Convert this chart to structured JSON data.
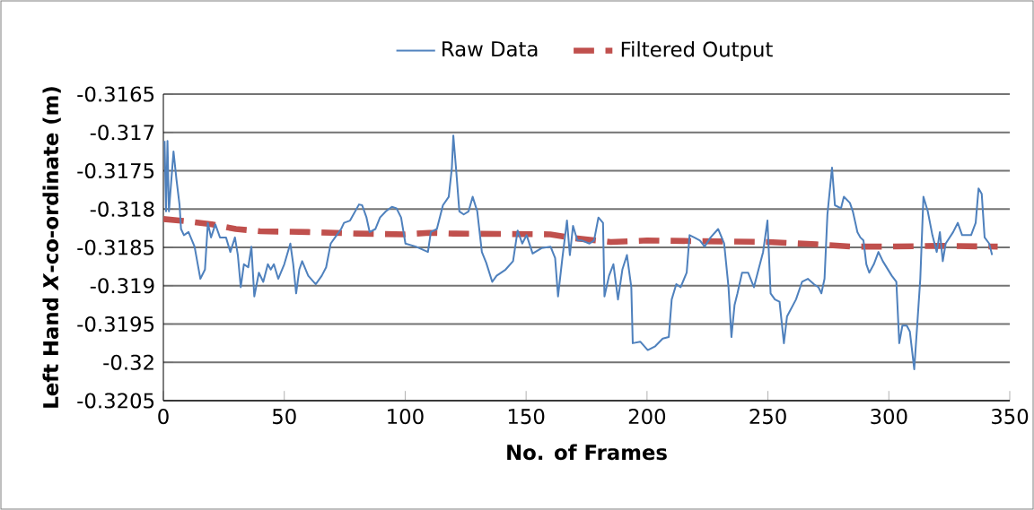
{
  "chart_data": {
    "type": "line",
    "xlabel": "No. of Frames",
    "ylabel": "**Left Hand *X*-co-ordinate (m)**",
    "xlim": [
      0,
      350
    ],
    "xticks": [
      0,
      50,
      100,
      150,
      200,
      250,
      300,
      350
    ],
    "ylim": [
      -0.3205,
      -0.3165
    ],
    "yticks": [
      -0.3205,
      -0.32,
      -0.3195,
      -0.319,
      -0.3185,
      -0.318,
      -0.3175,
      -0.317,
      -0.3165
    ],
    "grid": "y",
    "legend": "top",
    "marker": "none",
    "series": [
      {
        "name": "Raw Data",
        "color": "#4f81bd",
        "line_style": "solid",
        "x": [
          0.5,
          1.1,
          1.7,
          2.3,
          4.2,
          5.4,
          6.7,
          7.3,
          8.5,
          10.4,
          12.9,
          15.3,
          17.2,
          18.4,
          19.7,
          21.5,
          23.4,
          25.9,
          27.7,
          29.6,
          30.8,
          32.0,
          33.3,
          35.1,
          36.4,
          37.6,
          39.5,
          41.3,
          43.2,
          44.4,
          45.7,
          47.5,
          50.0,
          52.5,
          53.7,
          54.9,
          56.2,
          57.4,
          59.9,
          63.0,
          65.5,
          67.3,
          69.2,
          71.0,
          73.5,
          74.7,
          77.2,
          80.9,
          82.2,
          84.0,
          85.3,
          87.7,
          89.6,
          92.0,
          94.5,
          96.4,
          98.3,
          100.1,
          104.4,
          109.4,
          110.6,
          113.1,
          115.6,
          118.0,
          119.3,
          119.9,
          121.1,
          122.4,
          124.2,
          126.2,
          127.9,
          129.8,
          131.7,
          133.5,
          136.0,
          137.8,
          141.5,
          144.6,
          146.5,
          148.4,
          150.2,
          152.7,
          156.4,
          160.1,
          162.0,
          163.2,
          165.0,
          166.9,
          168.1,
          169.4,
          171.2,
          173.1,
          176.2,
          178.1,
          179.9,
          181.8,
          182.4,
          184.3,
          186.1,
          188.0,
          189.8,
          191.7,
          193.5,
          194.1,
          197.2,
          200.3,
          203.4,
          206.5,
          209.0,
          210.2,
          212.1,
          213.9,
          216.4,
          217.6,
          219.5,
          221.9,
          223.8,
          226.3,
          229.4,
          231.9,
          233.7,
          234.9,
          236.2,
          237.4,
          239.3,
          241.8,
          244.2,
          246.1,
          248.0,
          249.8,
          251.1,
          252.9,
          254.8,
          256.6,
          257.9,
          261.6,
          264.1,
          266.5,
          269.0,
          270.9,
          272.1,
          273.4,
          274.6,
          276.5,
          277.7,
          280.2,
          281.4,
          283.9,
          285.1,
          287.0,
          288.2,
          289.5,
          290.7,
          291.9,
          293.8,
          295.7,
          297.5,
          301.2,
          303.1,
          304.3,
          305.6,
          307.4,
          308.7,
          310.5,
          311.8,
          313.0,
          314.3,
          316.1,
          318.0,
          319.8,
          321.1,
          322.3,
          323.5,
          326.6,
          328.5,
          330.3,
          332.2,
          334.0,
          335.9,
          337.1,
          338.4,
          339.6,
          341.5,
          342.7
        ],
        "values": [
          -0.31711,
          -0.31803,
          -0.31711,
          -0.31803,
          -0.31725,
          -0.31761,
          -0.31795,
          -0.31826,
          -0.31834,
          -0.3183,
          -0.31849,
          -0.31891,
          -0.31879,
          -0.31818,
          -0.31837,
          -0.3182,
          -0.31837,
          -0.31837,
          -0.31856,
          -0.31837,
          -0.3186,
          -0.31902,
          -0.31872,
          -0.31876,
          -0.31849,
          -0.31914,
          -0.31883,
          -0.31895,
          -0.31872,
          -0.31879,
          -0.31872,
          -0.31891,
          -0.31872,
          -0.31845,
          -0.31872,
          -0.3191,
          -0.31879,
          -0.31868,
          -0.31887,
          -0.31898,
          -0.31887,
          -0.31876,
          -0.31845,
          -0.31837,
          -0.31826,
          -0.31818,
          -0.31815,
          -0.31794,
          -0.31795,
          -0.31811,
          -0.3183,
          -0.31826,
          -0.31811,
          -0.31803,
          -0.31797,
          -0.31799,
          -0.31811,
          -0.31845,
          -0.31849,
          -0.31856,
          -0.3183,
          -0.31826,
          -0.31795,
          -0.31784,
          -0.31746,
          -0.31704,
          -0.3175,
          -0.31803,
          -0.31807,
          -0.31803,
          -0.31784,
          -0.31803,
          -0.31856,
          -0.3187,
          -0.31895,
          -0.31887,
          -0.31879,
          -0.31868,
          -0.31828,
          -0.31845,
          -0.31834,
          -0.31858,
          -0.31851,
          -0.31849,
          -0.31864,
          -0.31914,
          -0.31864,
          -0.31815,
          -0.3186,
          -0.31822,
          -0.31841,
          -0.31841,
          -0.31845,
          -0.31841,
          -0.31811,
          -0.31818,
          -0.31914,
          -0.31887,
          -0.31872,
          -0.31918,
          -0.31879,
          -0.3186,
          -0.31902,
          -0.31975,
          -0.31973,
          -0.31984,
          -0.31979,
          -0.31969,
          -0.31967,
          -0.31918,
          -0.31898,
          -0.31902,
          -0.31883,
          -0.31834,
          -0.31837,
          -0.31841,
          -0.31849,
          -0.31837,
          -0.31826,
          -0.31845,
          -0.31902,
          -0.31967,
          -0.31925,
          -0.3191,
          -0.31883,
          -0.31883,
          -0.31902,
          -0.31879,
          -0.31856,
          -0.31815,
          -0.3191,
          -0.31918,
          -0.31921,
          -0.31975,
          -0.3194,
          -0.31918,
          -0.31895,
          -0.31891,
          -0.31898,
          -0.31902,
          -0.3191,
          -0.31891,
          -0.31807,
          -0.31746,
          -0.31795,
          -0.31799,
          -0.31784,
          -0.31792,
          -0.31803,
          -0.3183,
          -0.31837,
          -0.31841,
          -0.31872,
          -0.31883,
          -0.31872,
          -0.31856,
          -0.31868,
          -0.31887,
          -0.31895,
          -0.31975,
          -0.31952,
          -0.31952,
          -0.3196,
          -0.32009,
          -0.31948,
          -0.31891,
          -0.31784,
          -0.31803,
          -0.31834,
          -0.31856,
          -0.3183,
          -0.31868,
          -0.31845,
          -0.3183,
          -0.31818,
          -0.31834,
          -0.31834,
          -0.31834,
          -0.31818,
          -0.31773,
          -0.3178,
          -0.31837,
          -0.31845,
          -0.3186
        ]
      },
      {
        "name": "Filtered Output",
        "color": "#c0504d",
        "line_style": "dashed",
        "x": [
          0,
          10,
          20,
          30,
          40,
          60,
          80,
          100,
          110,
          120,
          160,
          170,
          185,
          200,
          250,
          270,
          285,
          300,
          320,
          345
        ],
        "values": [
          -0.31813,
          -0.31816,
          -0.3182,
          -0.31826,
          -0.31829,
          -0.3183,
          -0.31832,
          -0.31833,
          -0.31831,
          -0.31832,
          -0.31833,
          -0.31838,
          -0.31843,
          -0.31841,
          -0.31843,
          -0.31846,
          -0.31849,
          -0.31849,
          -0.31848,
          -0.31849
        ]
      }
    ]
  }
}
